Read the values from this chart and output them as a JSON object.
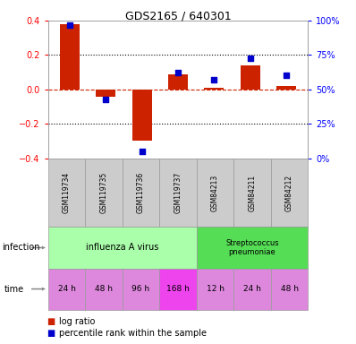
{
  "title": "GDS2165 / 640301",
  "samples": [
    "GSM119734",
    "GSM119735",
    "GSM119736",
    "GSM119737",
    "GSM84213",
    "GSM84211",
    "GSM84212"
  ],
  "log_ratio": [
    0.38,
    -0.04,
    -0.3,
    0.09,
    0.01,
    0.14,
    0.02
  ],
  "percentile_rank": [
    97,
    43,
    5,
    62,
    57,
    73,
    60
  ],
  "ylim_left": [
    -0.4,
    0.4
  ],
  "ylim_right": [
    0,
    100
  ],
  "yticks_left": [
    -0.4,
    -0.2,
    0.0,
    0.2,
    0.4
  ],
  "yticks_right": [
    0,
    25,
    50,
    75,
    100
  ],
  "ytick_labels_right": [
    "0%",
    "25%",
    "50%",
    "75%",
    "100%"
  ],
  "bar_color": "#cc2200",
  "dot_color": "#0000cc",
  "grid_color": "#000000",
  "zero_line_color": "#cc2200",
  "time_labels": [
    "24 h",
    "48 h",
    "96 h",
    "168 h",
    "12 h",
    "24 h",
    "48 h"
  ],
  "inf_color_1": "#aaffaa",
  "inf_color_2": "#55dd55",
  "time_color_light": "#dd88dd",
  "time_color_dark": "#ee44ee",
  "sample_box_color": "#cccccc",
  "legend_red_label": "log ratio",
  "legend_blue_label": "percentile rank within the sample",
  "background_color": "#ffffff"
}
